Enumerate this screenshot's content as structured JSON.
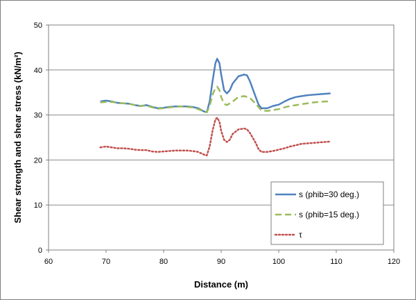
{
  "chart_data": {
    "type": "line",
    "title": "",
    "xlabel": "Distance (m)",
    "ylabel": "Shear strength and shear stress (kN/m²)",
    "xlim": [
      60,
      120
    ],
    "ylim": [
      0,
      50
    ],
    "xticks": [
      60,
      70,
      80,
      90,
      100,
      110,
      120
    ],
    "yticks": [
      0,
      10,
      20,
      30,
      40,
      50
    ],
    "grid": "horizontal",
    "legend": "bottom-right",
    "series": [
      {
        "name": "s (phib=30 deg.)",
        "color": "#4f81bd",
        "style": "solid",
        "points": [
          [
            69,
            33.0
          ],
          [
            70,
            33.2
          ],
          [
            71,
            33.0
          ],
          [
            72,
            32.7
          ],
          [
            73,
            32.6
          ],
          [
            74,
            32.5
          ],
          [
            75,
            32.2
          ],
          [
            76,
            32.0
          ],
          [
            77,
            32.2
          ],
          [
            78,
            31.8
          ],
          [
            79,
            31.5
          ],
          [
            80,
            31.6
          ],
          [
            81,
            31.8
          ],
          [
            82,
            31.9
          ],
          [
            83,
            31.9
          ],
          [
            84,
            31.9
          ],
          [
            85,
            31.8
          ],
          [
            86,
            31.5
          ],
          [
            87,
            30.8
          ],
          [
            87.5,
            30.6
          ],
          [
            88,
            33.0
          ],
          [
            88.5,
            37.5
          ],
          [
            89,
            41.5
          ],
          [
            89.3,
            42.5
          ],
          [
            89.7,
            41.5
          ],
          [
            90,
            39.0
          ],
          [
            90.5,
            35.5
          ],
          [
            91,
            34.8
          ],
          [
            91.5,
            35.5
          ],
          [
            92,
            37.0
          ],
          [
            93,
            38.6
          ],
          [
            94,
            39.0
          ],
          [
            94.5,
            38.8
          ],
          [
            95,
            37.5
          ],
          [
            96,
            34.0
          ],
          [
            96.5,
            32.3
          ],
          [
            97,
            31.5
          ],
          [
            98,
            31.5
          ],
          [
            99,
            32.0
          ],
          [
            100,
            32.3
          ],
          [
            101,
            33.0
          ],
          [
            102,
            33.6
          ],
          [
            103,
            34.0
          ],
          [
            104,
            34.2
          ],
          [
            105,
            34.4
          ],
          [
            106,
            34.5
          ],
          [
            107,
            34.6
          ],
          [
            108,
            34.7
          ],
          [
            109,
            34.8
          ]
        ]
      },
      {
        "name": "s (phib=15 deg.)",
        "color": "#9bbb59",
        "style": "dashed",
        "points": [
          [
            69,
            32.8
          ],
          [
            70,
            32.9
          ],
          [
            71,
            32.9
          ],
          [
            72,
            32.7
          ],
          [
            73,
            32.6
          ],
          [
            74,
            32.5
          ],
          [
            75,
            32.2
          ],
          [
            76,
            32.0
          ],
          [
            77,
            32.1
          ],
          [
            78,
            31.7
          ],
          [
            79,
            31.4
          ],
          [
            80,
            31.5
          ],
          [
            81,
            31.7
          ],
          [
            82,
            31.8
          ],
          [
            83,
            31.9
          ],
          [
            84,
            31.8
          ],
          [
            85,
            31.7
          ],
          [
            86,
            31.3
          ],
          [
            87,
            30.8
          ],
          [
            87.5,
            30.6
          ],
          [
            88,
            32.0
          ],
          [
            88.5,
            34.5
          ],
          [
            89,
            36.0
          ],
          [
            89.3,
            36.3
          ],
          [
            89.7,
            35.5
          ],
          [
            90,
            34.0
          ],
          [
            90.5,
            32.5
          ],
          [
            91,
            32.2
          ],
          [
            92,
            33.0
          ],
          [
            93,
            34.0
          ],
          [
            94,
            34.2
          ],
          [
            95,
            33.8
          ],
          [
            96,
            32.5
          ],
          [
            97,
            31.0
          ],
          [
            98,
            30.9
          ],
          [
            99,
            31.1
          ],
          [
            100,
            31.3
          ],
          [
            101,
            31.7
          ],
          [
            102,
            32.0
          ],
          [
            103,
            32.2
          ],
          [
            104,
            32.4
          ],
          [
            105,
            32.6
          ],
          [
            106,
            32.8
          ],
          [
            107,
            32.9
          ],
          [
            108,
            33.0
          ],
          [
            109,
            33.0
          ]
        ]
      },
      {
        "name": "τ",
        "color": "#c0504d",
        "style": "dotted",
        "points": [
          [
            69,
            22.8
          ],
          [
            70,
            23.0
          ],
          [
            71,
            22.8
          ],
          [
            72,
            22.6
          ],
          [
            73,
            22.6
          ],
          [
            74,
            22.5
          ],
          [
            75,
            22.3
          ],
          [
            76,
            22.2
          ],
          [
            77,
            22.2
          ],
          [
            78,
            21.9
          ],
          [
            79,
            21.8
          ],
          [
            80,
            21.9
          ],
          [
            81,
            22.0
          ],
          [
            82,
            22.1
          ],
          [
            83,
            22.1
          ],
          [
            84,
            22.1
          ],
          [
            85,
            22.0
          ],
          [
            86,
            21.8
          ],
          [
            87,
            21.2
          ],
          [
            87.5,
            21.0
          ],
          [
            88,
            23.0
          ],
          [
            88.5,
            26.5
          ],
          [
            89,
            29.0
          ],
          [
            89.3,
            29.4
          ],
          [
            89.7,
            28.5
          ],
          [
            90,
            26.5
          ],
          [
            90.5,
            24.5
          ],
          [
            91,
            24.0
          ],
          [
            91.5,
            24.5
          ],
          [
            92,
            25.8
          ],
          [
            93,
            26.8
          ],
          [
            94,
            27.0
          ],
          [
            94.5,
            26.8
          ],
          [
            95,
            26.0
          ],
          [
            96,
            23.8
          ],
          [
            96.5,
            22.4
          ],
          [
            97,
            21.8
          ],
          [
            98,
            21.8
          ],
          [
            99,
            22.0
          ],
          [
            100,
            22.3
          ],
          [
            101,
            22.6
          ],
          [
            102,
            23.0
          ],
          [
            103,
            23.3
          ],
          [
            104,
            23.6
          ],
          [
            105,
            23.7
          ],
          [
            106,
            23.8
          ],
          [
            107,
            23.9
          ],
          [
            108,
            24.0
          ],
          [
            109,
            24.1
          ]
        ]
      }
    ]
  }
}
